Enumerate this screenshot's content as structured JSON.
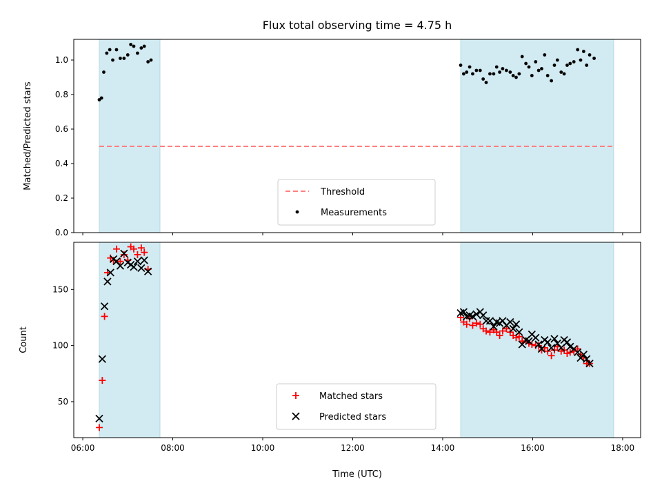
{
  "chart_data": {
    "title": "Flux total observing time = 4.75 h",
    "xlabel": "Time (UTC)",
    "xlim": [
      "06:00",
      "18:00"
    ],
    "colors": {
      "threshold": "#ff7f7f",
      "band": "#add8e6",
      "matched": "#ff0000",
      "predicted": "#000000",
      "measurements": "#000000"
    },
    "observing_windows": [
      [
        "06:22",
        "07:43"
      ],
      [
        "14:24",
        "17:48"
      ]
    ],
    "panels": [
      {
        "type": "scatter",
        "ylabel": "Matched/Predicted stars",
        "ylim": [
          0,
          1.12
        ],
        "yticks": [
          "0.0",
          "0.2",
          "0.4",
          "0.6",
          "0.8",
          "1.0"
        ],
        "threshold": 0.5,
        "legend": {
          "position": "lower center",
          "entries": [
            "Threshold",
            "Measurements"
          ]
        },
        "series": [
          {
            "name": "Measurements",
            "marker": "dot",
            "points": [
              [
                "06:22",
                0.77
              ],
              [
                "06:25",
                0.78
              ],
              [
                "06:28",
                0.93
              ],
              [
                "06:32",
                1.04
              ],
              [
                "06:36",
                1.06
              ],
              [
                "06:40",
                1.0
              ],
              [
                "06:45",
                1.06
              ],
              [
                "06:50",
                1.01
              ],
              [
                "06:55",
                1.01
              ],
              [
                "07:00",
                1.03
              ],
              [
                "07:04",
                1.09
              ],
              [
                "07:08",
                1.08
              ],
              [
                "07:13",
                1.04
              ],
              [
                "07:18",
                1.07
              ],
              [
                "07:22",
                1.08
              ],
              [
                "07:27",
                0.99
              ],
              [
                "07:31",
                1.0
              ],
              [
                "14:24",
                0.97
              ],
              [
                "14:28",
                0.92
              ],
              [
                "14:32",
                0.93
              ],
              [
                "14:36",
                0.96
              ],
              [
                "14:40",
                0.92
              ],
              [
                "14:45",
                0.94
              ],
              [
                "14:50",
                0.94
              ],
              [
                "14:54",
                0.89
              ],
              [
                "14:58",
                0.87
              ],
              [
                "15:03",
                0.92
              ],
              [
                "15:08",
                0.92
              ],
              [
                "15:12",
                0.96
              ],
              [
                "15:16",
                0.93
              ],
              [
                "15:20",
                0.95
              ],
              [
                "15:25",
                0.94
              ],
              [
                "15:30",
                0.93
              ],
              [
                "15:34",
                0.91
              ],
              [
                "15:38",
                0.9
              ],
              [
                "15:42",
                0.92
              ],
              [
                "15:46",
                1.02
              ],
              [
                "15:51",
                0.98
              ],
              [
                "15:55",
                0.96
              ],
              [
                "15:59",
                0.91
              ],
              [
                "16:04",
                0.99
              ],
              [
                "16:08",
                0.94
              ],
              [
                "16:12",
                0.95
              ],
              [
                "16:16",
                1.03
              ],
              [
                "16:20",
                0.91
              ],
              [
                "16:25",
                0.88
              ],
              [
                "16:29",
                0.97
              ],
              [
                "16:33",
                1.0
              ],
              [
                "16:38",
                0.93
              ],
              [
                "16:42",
                0.92
              ],
              [
                "16:46",
                0.97
              ],
              [
                "16:50",
                0.98
              ],
              [
                "16:55",
                0.99
              ],
              [
                "17:00",
                1.06
              ],
              [
                "17:04",
                1.0
              ],
              [
                "17:08",
                1.05
              ],
              [
                "17:12",
                0.97
              ],
              [
                "17:16",
                1.03
              ],
              [
                "17:22",
                1.01
              ]
            ]
          }
        ]
      },
      {
        "type": "scatter",
        "ylabel": "Count",
        "ylim": [
          18,
          192
        ],
        "yticks": [
          "50",
          "100",
          "150"
        ],
        "legend": {
          "position": "lower center",
          "entries": [
            "Matched stars",
            "Predicted stars"
          ]
        },
        "series": [
          {
            "name": "Matched stars",
            "marker": "plus",
            "points": [
              [
                "06:22",
                27
              ],
              [
                "06:26",
                69
              ],
              [
                "06:29",
                126
              ],
              [
                "06:33",
                165
              ],
              [
                "06:37",
                178
              ],
              [
                "06:41",
                176
              ],
              [
                "06:45",
                186
              ],
              [
                "06:50",
                175
              ],
              [
                "06:55",
                181
              ],
              [
                "07:00",
                176
              ],
              [
                "07:04",
                188
              ],
              [
                "07:08",
                186
              ],
              [
                "07:13",
                181
              ],
              [
                "07:18",
                187
              ],
              [
                "07:22",
                183
              ],
              [
                "07:27",
                168
              ],
              [
                "14:24",
                125
              ],
              [
                "14:28",
                121
              ],
              [
                "14:32",
                119
              ],
              [
                "14:36",
                124
              ],
              [
                "14:40",
                118
              ],
              [
                "14:45",
                120
              ],
              [
                "14:50",
                119
              ],
              [
                "14:54",
                115
              ],
              [
                "14:58",
                113
              ],
              [
                "15:03",
                112
              ],
              [
                "15:08",
                114
              ],
              [
                "15:12",
                112
              ],
              [
                "15:16",
                109
              ],
              [
                "15:20",
                113
              ],
              [
                "15:25",
                115
              ],
              [
                "15:30",
                112
              ],
              [
                "15:34",
                109
              ],
              [
                "15:38",
                107
              ],
              [
                "15:42",
                108
              ],
              [
                "15:46",
                104
              ],
              [
                "15:51",
                104
              ],
              [
                "15:55",
                102
              ],
              [
                "15:59",
                101
              ],
              [
                "16:04",
                100
              ],
              [
                "16:08",
                100
              ],
              [
                "16:12",
                96
              ],
              [
                "16:16",
                98
              ],
              [
                "16:20",
                95
              ],
              [
                "16:25",
                91
              ],
              [
                "16:29",
                96
              ],
              [
                "16:33",
                99
              ],
              [
                "16:38",
                95
              ],
              [
                "16:42",
                96
              ],
              [
                "16:46",
                93
              ],
              [
                "16:50",
                94
              ],
              [
                "16:55",
                95
              ],
              [
                "17:00",
                97
              ],
              [
                "17:04",
                92
              ],
              [
                "17:08",
                89
              ],
              [
                "17:12",
                84
              ],
              [
                "17:16",
                84
              ]
            ]
          },
          {
            "name": "Predicted stars",
            "marker": "x",
            "points": [
              [
                "06:22",
                35
              ],
              [
                "06:26",
                88
              ],
              [
                "06:29",
                135
              ],
              [
                "06:33",
                157
              ],
              [
                "06:37",
                165
              ],
              [
                "06:41",
                177
              ],
              [
                "06:45",
                175
              ],
              [
                "06:50",
                171
              ],
              [
                "06:55",
                182
              ],
              [
                "07:00",
                174
              ],
              [
                "07:04",
                172
              ],
              [
                "07:08",
                170
              ],
              [
                "07:13",
                175
              ],
              [
                "07:18",
                169
              ],
              [
                "07:22",
                176
              ],
              [
                "07:27",
                166
              ],
              [
                "14:24",
                129
              ],
              [
                "14:28",
                130
              ],
              [
                "14:32",
                126
              ],
              [
                "14:36",
                127
              ],
              [
                "14:40",
                126
              ],
              [
                "14:45",
                128
              ],
              [
                "14:50",
                130
              ],
              [
                "14:54",
                127
              ],
              [
                "14:58",
                122
              ],
              [
                "15:03",
                122
              ],
              [
                "15:08",
                117
              ],
              [
                "15:12",
                121
              ],
              [
                "15:16",
                120
              ],
              [
                "15:20",
                122
              ],
              [
                "15:25",
                118
              ],
              [
                "15:30",
                121
              ],
              [
                "15:34",
                115
              ],
              [
                "15:38",
                119
              ],
              [
                "15:42",
                112
              ],
              [
                "15:46",
                101
              ],
              [
                "15:51",
                105
              ],
              [
                "15:55",
                104
              ],
              [
                "15:59",
                110
              ],
              [
                "16:04",
                107
              ],
              [
                "16:08",
                101
              ],
              [
                "16:12",
                97
              ],
              [
                "16:16",
                105
              ],
              [
                "16:20",
                103
              ],
              [
                "16:25",
                98
              ],
              [
                "16:29",
                106
              ],
              [
                "16:33",
                102
              ],
              [
                "16:38",
                98
              ],
              [
                "16:42",
                105
              ],
              [
                "16:46",
                103
              ],
              [
                "16:50",
                99
              ],
              [
                "16:55",
                97
              ],
              [
                "17:00",
                94
              ],
              [
                "17:04",
                89
              ],
              [
                "17:08",
                92
              ],
              [
                "17:12",
                88
              ],
              [
                "17:16",
                84
              ]
            ]
          }
        ]
      }
    ],
    "xticks": [
      "06:00",
      "08:00",
      "10:00",
      "12:00",
      "14:00",
      "16:00",
      "18:00"
    ]
  }
}
